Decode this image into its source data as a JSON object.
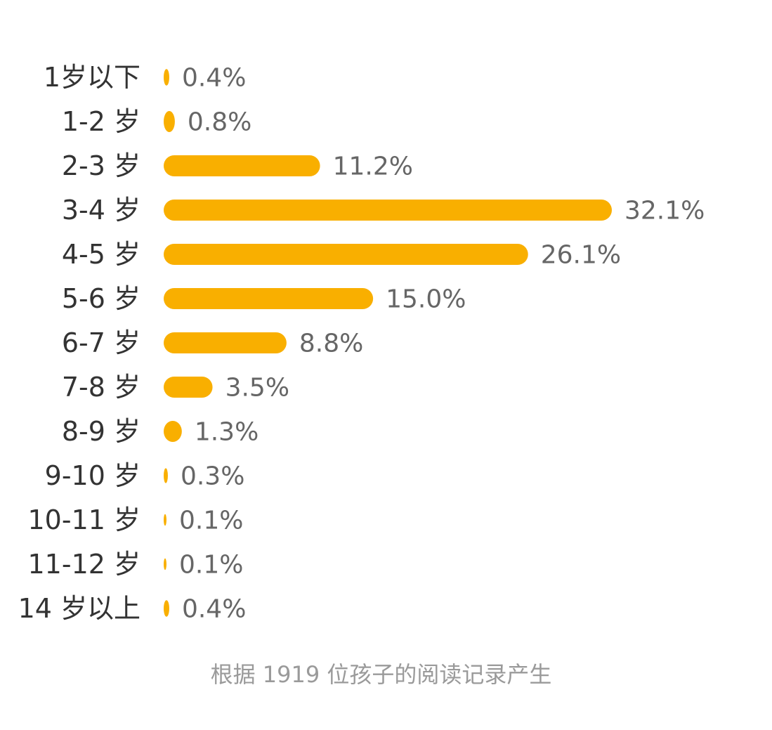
{
  "chart_data": {
    "type": "bar",
    "orientation": "horizontal",
    "categories": [
      "1岁以下",
      "1-2 岁",
      "2-3 岁",
      "3-4 岁",
      "4-5 岁",
      "5-6 岁",
      "6-7 岁",
      "7-8 岁",
      "8-9 岁",
      "9-10 岁",
      "10-11 岁",
      "11-12 岁",
      "14 岁以上"
    ],
    "values": [
      0.4,
      0.8,
      11.2,
      32.1,
      26.1,
      15.0,
      8.8,
      3.5,
      1.3,
      0.3,
      0.1,
      0.1,
      0.4
    ],
    "value_labels": [
      "0.4%",
      "0.8%",
      "11.2%",
      "32.1%",
      "26.1%",
      "15.0%",
      "8.8%",
      "3.5%",
      "1.3%",
      "0.3%",
      "0.1%",
      "0.1%",
      "0.4%"
    ],
    "unit": "%",
    "bar_color": "#F9AF00",
    "grid": false,
    "legend": "none"
  },
  "footnote": "根据 1919 位孩子的阅读记录产生"
}
